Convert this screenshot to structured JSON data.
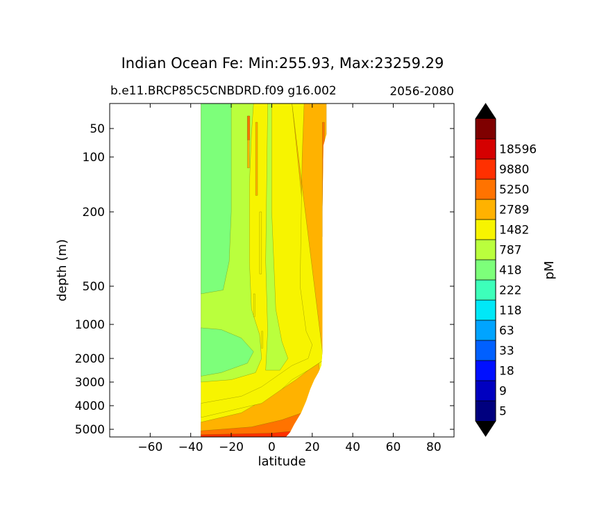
{
  "chart_data": {
    "type": "contourf",
    "title": "Indian Ocean Fe: Min:255.93, Max:23259.29",
    "subtitle_left": "b.e11.BRCP85C5CNBDRD.f09 g16.002",
    "subtitle_right": "2056-2080",
    "xlabel": "latitude",
    "ylabel": "depth (m)",
    "xlim": [
      -80,
      90
    ],
    "ylim": [
      5500,
      10
    ],
    "xticks": [
      -60,
      -40,
      -20,
      0,
      20,
      40,
      60,
      80
    ],
    "xtick_labels": [
      "−60",
      "−40",
      "−20",
      "0",
      "20",
      "40",
      "60",
      "80"
    ],
    "yticks": [
      50,
      100,
      200,
      500,
      1000,
      2000,
      3000,
      4000,
      5000
    ],
    "ytick_labels": [
      "50",
      "100",
      "200",
      "500",
      "1000",
      "2000",
      "3000",
      "4000",
      "5000"
    ],
    "colorbar": {
      "label": "pM",
      "tick_labels": [
        "5",
        "9",
        "18",
        "33",
        "63",
        "118",
        "222",
        "418",
        "787",
        "1482",
        "2789",
        "5250",
        "9880",
        "18596"
      ],
      "colors": [
        "#00007f",
        "#0000c0",
        "#0010ff",
        "#0060ff",
        "#00a4ff",
        "#00e8f7",
        "#3dffba",
        "#7dff7a",
        "#baff3d",
        "#f7f400",
        "#ffb200",
        "#ff7300",
        "#ff3000",
        "#d50000",
        "#7f0000"
      ],
      "extend": "both"
    },
    "data_extent": {
      "lat_min": -35,
      "lat_max": 27,
      "depth_min": 10,
      "depth_max": 5500
    },
    "regions": [
      {
        "name": "green-418",
        "lat_range": [
          -35,
          -20
        ],
        "depth_range": [
          10,
          600
        ],
        "level": "418"
      },
      {
        "name": "green-418-deep",
        "lat_range": [
          -35,
          -5
        ],
        "depth_range": [
          1100,
          2800
        ],
        "level": "418"
      },
      {
        "name": "yellow-green-787",
        "lat_range": [
          -33,
          10
        ],
        "depth_range": [
          10,
          3000
        ],
        "level": "787"
      },
      {
        "name": "yellow-1482",
        "lat_range": [
          -35,
          15
        ],
        "depth_range": [
          3000,
          5500
        ],
        "level": "1482"
      },
      {
        "name": "orange-2789",
        "lat_range": [
          10,
          27
        ],
        "depth_range": [
          10,
          3000
        ],
        "level": "2789"
      },
      {
        "name": "dark-orange-5250",
        "lat_range": [
          -35,
          15
        ],
        "depth_range": [
          4000,
          5500
        ],
        "level": "5250"
      }
    ]
  }
}
